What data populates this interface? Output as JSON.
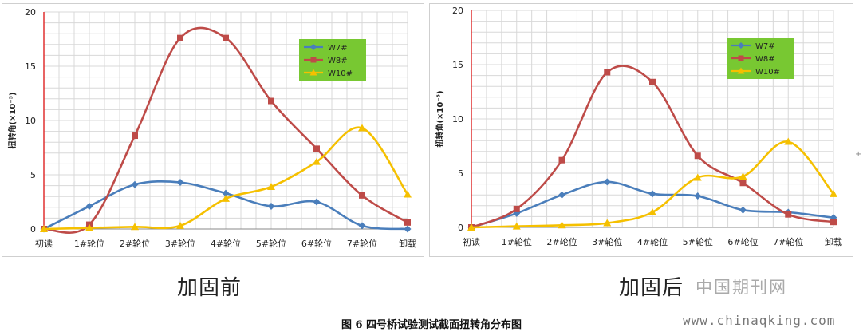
{
  "figure": {
    "caption": "图 6 四号桥试验测试截面扭转角分布图",
    "watermark_cn": "中国期刊网",
    "watermark_url": "www.chinaqking.com"
  },
  "chart_data": [
    {
      "type": "line",
      "panel_title": "加固前",
      "ylabel": "扭转角(×10⁻⁵)",
      "ylim": [
        0,
        20
      ],
      "yticks": [
        0,
        5,
        10,
        15,
        20
      ],
      "grid": true,
      "legend_position": "top-right",
      "legend_bg": "#78c832",
      "categories": [
        "初读",
        "1#轮位",
        "2#轮位",
        "3#轮位",
        "4#轮位",
        "5#轮位",
        "6#轮位",
        "7#轮位",
        "卸载"
      ],
      "series": [
        {
          "name": "W7#",
          "color": "#4a7ebb",
          "marker": "diamond",
          "values": [
            0,
            2.1,
            4.1,
            4.3,
            3.3,
            2.1,
            2.5,
            0.3,
            0
          ]
        },
        {
          "name": "W8#",
          "color": "#be4b48",
          "marker": "square",
          "values": [
            0,
            0.4,
            8.6,
            17.6,
            17.6,
            11.8,
            7.4,
            3.1,
            0.6
          ]
        },
        {
          "name": "W10#",
          "color": "#f5c000",
          "marker": "triangle",
          "values": [
            0,
            0.1,
            0.2,
            0.3,
            2.8,
            3.9,
            6.2,
            9.3,
            3.2
          ]
        }
      ]
    },
    {
      "type": "line",
      "panel_title": "加固后",
      "ylabel": "扭转角(×10⁻⁵)",
      "ylim": [
        0,
        20
      ],
      "yticks": [
        0,
        5,
        10,
        15,
        20
      ],
      "grid": true,
      "legend_position": "top-right",
      "legend_bg": "#78c832",
      "categories": [
        "初读",
        "1#轮位",
        "2#轮位",
        "3#轮位",
        "4#轮位",
        "5#轮位",
        "6#轮位",
        "7#轮位",
        "卸载"
      ],
      "series": [
        {
          "name": "W7#",
          "color": "#4a7ebb",
          "marker": "diamond",
          "values": [
            0,
            1.3,
            3.0,
            4.2,
            3.1,
            2.9,
            1.6,
            1.4,
            0.9
          ]
        },
        {
          "name": "W8#",
          "color": "#be4b48",
          "marker": "square",
          "values": [
            0,
            1.7,
            6.2,
            14.3,
            13.4,
            6.6,
            4.1,
            1.2,
            0.5
          ]
        },
        {
          "name": "W10#",
          "color": "#f5c000",
          "marker": "triangle",
          "values": [
            0,
            0.1,
            0.2,
            0.4,
            1.4,
            4.6,
            4.7,
            7.9,
            3.1
          ]
        }
      ]
    }
  ]
}
